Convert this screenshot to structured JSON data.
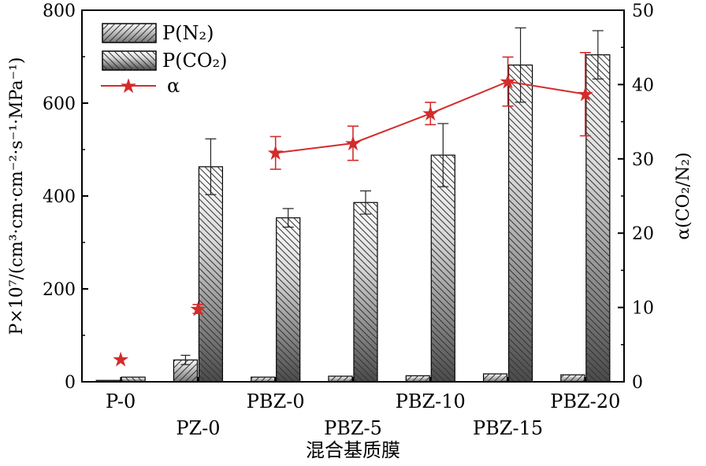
{
  "chart_data": {
    "type": "bar",
    "categories": [
      "P-0",
      "PZ-0",
      "PBZ-0",
      "PBZ-5",
      "PBZ-10",
      "PBZ-15",
      "PBZ-20"
    ],
    "series": [
      {
        "name": "P(N₂)",
        "axis": "left",
        "values": [
          3,
          47,
          10,
          12,
          13,
          17,
          15
        ],
        "errors": [
          0,
          10,
          0,
          0,
          0,
          0,
          0
        ]
      },
      {
        "name": "P(CO₂)",
        "axis": "left",
        "values": [
          10,
          463,
          353,
          386,
          488,
          682,
          704
        ],
        "errors": [
          0,
          60,
          20,
          25,
          68,
          80,
          52
        ]
      },
      {
        "name": "α",
        "axis": "right",
        "type": "line",
        "color": "#d42b2b",
        "values": [
          3.0,
          9.8,
          30.8,
          32.1,
          36.1,
          40.4,
          38.7
        ],
        "errors": [
          0,
          0.6,
          2.2,
          2.3,
          1.5,
          3.3,
          5.6
        ],
        "connected_from_index": 2
      }
    ],
    "ylabel": "P×10⁷/(cm³·cm·cm⁻²·s⁻¹·MPa⁻¹)",
    "y2label": "α(CO₂/N₂)",
    "xlabel": "混合基质膜",
    "ylim": [
      0,
      800
    ],
    "y2lim": [
      0,
      50
    ],
    "yticks": [
      "0",
      "200",
      "400",
      "600",
      "800"
    ],
    "y2ticks": [
      "0",
      "10",
      "20",
      "30",
      "40",
      "50"
    ],
    "legend_position": "top-left",
    "grid": false
  }
}
